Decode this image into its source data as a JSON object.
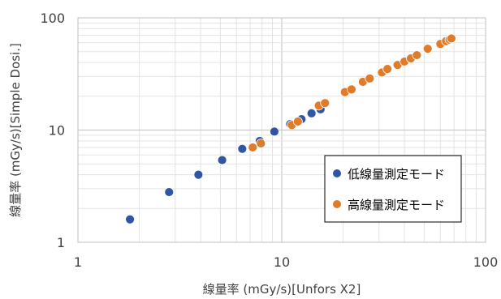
{
  "chart_data": {
    "type": "scatter",
    "title": "",
    "xlabel": "線量率 (mGy/s)[Unfors X2]",
    "ylabel": "線量率 (mGy/s)[Simple Dosi.]",
    "xscale": "log",
    "yscale": "log",
    "xlim": [
      1,
      100
    ],
    "ylim": [
      1,
      100
    ],
    "grid": true,
    "legend_position": "bottom-right",
    "x_ticks": [
      "1",
      "10",
      "100"
    ],
    "y_ticks": [
      "1",
      "10",
      "100"
    ],
    "series": [
      {
        "name": "低線量測定モード",
        "color": "#2f55a4",
        "points": [
          [
            1.8,
            1.6
          ],
          [
            2.8,
            2.8
          ],
          [
            3.9,
            4.0
          ],
          [
            5.1,
            5.4
          ],
          [
            6.4,
            6.8
          ],
          [
            7.8,
            8.0
          ],
          [
            9.2,
            9.7
          ],
          [
            11.0,
            11.3
          ],
          [
            12.5,
            12.5
          ],
          [
            14.0,
            14.1
          ],
          [
            15.5,
            15.3
          ]
        ]
      },
      {
        "name": "高線量測定モード",
        "color": "#e07b2a",
        "points": [
          [
            7.2,
            7.0
          ],
          [
            7.9,
            7.6
          ],
          [
            11.2,
            11.1
          ],
          [
            12.0,
            11.9
          ],
          [
            15.2,
            16.5
          ],
          [
            16.3,
            17.4
          ],
          [
            20.4,
            21.8
          ],
          [
            22.0,
            23.0
          ],
          [
            25.0,
            26.9
          ],
          [
            27.0,
            28.8
          ],
          [
            31.0,
            32.6
          ],
          [
            33.0,
            35.0
          ],
          [
            37.0,
            38.0
          ],
          [
            40.0,
            40.8
          ],
          [
            43.0,
            43.5
          ],
          [
            46.0,
            46.5
          ],
          [
            52.0,
            53.0
          ],
          [
            60.0,
            58.5
          ],
          [
            64.0,
            62.0
          ],
          [
            66.5,
            64.0
          ],
          [
            68.0,
            65.5
          ]
        ]
      }
    ]
  }
}
